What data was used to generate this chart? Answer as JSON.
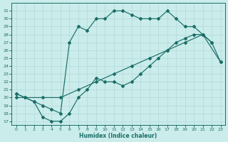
{
  "xlabel": "Humidex (Indice chaleur)",
  "bg_color": "#caecea",
  "line_color": "#1a6e68",
  "grid_color": "#b8dede",
  "xlim": [
    -0.5,
    23.5
  ],
  "ylim": [
    16.5,
    32
  ],
  "yticks": [
    17,
    18,
    19,
    20,
    21,
    22,
    23,
    24,
    25,
    26,
    27,
    28,
    29,
    30,
    31
  ],
  "xticks": [
    0,
    1,
    2,
    3,
    4,
    5,
    6,
    7,
    8,
    9,
    10,
    11,
    12,
    13,
    14,
    15,
    16,
    17,
    18,
    19,
    20,
    21,
    22,
    23
  ],
  "line_top_x": [
    0,
    1,
    2,
    3,
    4,
    5,
    6,
    7,
    8,
    9,
    10,
    11,
    12,
    13,
    14,
    15,
    16,
    17,
    18,
    19,
    20,
    21,
    22
  ],
  "line_top_y": [
    20.5,
    20,
    19.5,
    19,
    18.5,
    18,
    27,
    29,
    28.5,
    30,
    30,
    31,
    31,
    30.5,
    30,
    30,
    30,
    31,
    30,
    29,
    29,
    28,
    27
  ],
  "line_mid_x": [
    0,
    3,
    5,
    7,
    9,
    11,
    13,
    15,
    17,
    19,
    21,
    23
  ],
  "line_mid_y": [
    20,
    20,
    20,
    21,
    22,
    23,
    24,
    25,
    26,
    27,
    28,
    24.5
  ],
  "line_bot_x": [
    0,
    1,
    2,
    3,
    4,
    5,
    6,
    7,
    8,
    9,
    10,
    11,
    12,
    13,
    14,
    15,
    16,
    17,
    18,
    19,
    20,
    21,
    22,
    23
  ],
  "line_bot_y": [
    20.5,
    20,
    19.5,
    17.5,
    17,
    17,
    18,
    20,
    21,
    22.5,
    22,
    22,
    21.5,
    22,
    23,
    24,
    25,
    26,
    27,
    27.5,
    28,
    28,
    27,
    24.5
  ]
}
